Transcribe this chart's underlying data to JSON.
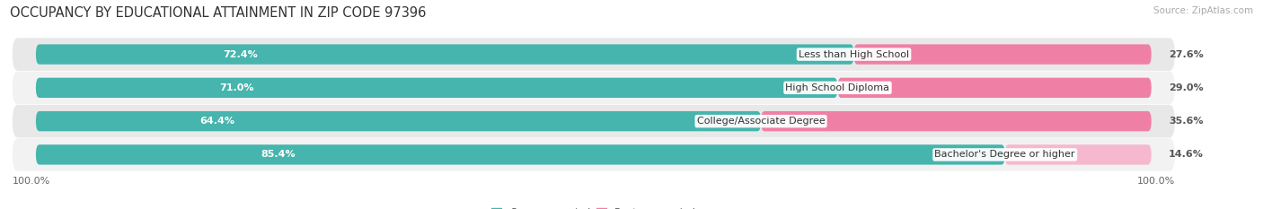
{
  "title": "OCCUPANCY BY EDUCATIONAL ATTAINMENT IN ZIP CODE 97396",
  "source": "Source: ZipAtlas.com",
  "categories": [
    "Less than High School",
    "High School Diploma",
    "College/Associate Degree",
    "Bachelor's Degree or higher"
  ],
  "owner_pct": [
    72.4,
    71.0,
    64.4,
    85.4
  ],
  "renter_pct": [
    27.6,
    29.0,
    35.6,
    14.6
  ],
  "owner_color": "#45b5ad",
  "renter_color_dark": "#f07fa5",
  "renter_color_light": "#f5b8cf",
  "bg_color_dark": "#e8e8e8",
  "bg_color_light": "#f2f2f2",
  "axis_label_left": "100.0%",
  "axis_label_right": "100.0%",
  "title_fontsize": 10.5,
  "source_fontsize": 7.5,
  "bar_fontsize": 8,
  "cat_fontsize": 8,
  "legend_fontsize": 8,
  "tick_fontsize": 8
}
